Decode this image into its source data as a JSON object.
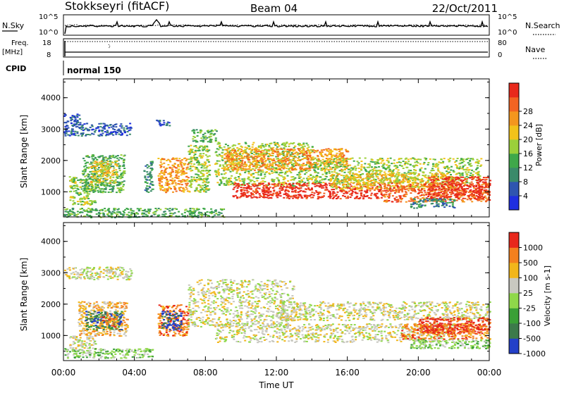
{
  "header": {
    "station": "Stokkseyri (fitACF)",
    "beam": "Beam 04",
    "date": "22/Oct/2011"
  },
  "top_panels": {
    "nsky": {
      "label": "N.Sky",
      "ticks": [
        "10^5",
        "10^0"
      ]
    },
    "nsearch": {
      "label": "N.Search",
      "ticks": [
        "10^5",
        "10^0"
      ]
    },
    "freq": {
      "label_line1": "Freq.",
      "label_line2": "[MHz]",
      "ticks": [
        "18",
        "8"
      ]
    },
    "nave": {
      "label": "Nave",
      "ticks": [
        "80",
        "0"
      ]
    },
    "cpid": {
      "label": "CPID",
      "value": "normal 150"
    }
  },
  "chart_data": [
    {
      "type": "heatmap",
      "name": "power",
      "ylabel": "Slant Range [km]",
      "ylim": [
        200,
        4600
      ],
      "yticks": [
        "1000",
        "2000",
        "3000",
        "4000"
      ],
      "xlim_hours": [
        0,
        24
      ],
      "colorbar": {
        "label": "Power [dB]",
        "ticks": [
          "4",
          "8",
          "12",
          "16",
          "20",
          "24",
          "28"
        ],
        "colors": [
          "#1f2fe0",
          "#2f55b0",
          "#3a8a6a",
          "#3fa84a",
          "#9bd03a",
          "#f2c21a",
          "#f4961e",
          "#f26422",
          "#e8291c"
        ]
      },
      "regions": [
        {
          "h0": 0.0,
          "h1": 3.8,
          "r0": 2800,
          "r1": 3200,
          "level": 1
        },
        {
          "h0": 0.0,
          "h1": 0.9,
          "r0": 3200,
          "r1": 3500,
          "level": 1
        },
        {
          "h0": 0.3,
          "h1": 1.8,
          "r0": 600,
          "r1": 1500,
          "level": 4
        },
        {
          "h0": 1.0,
          "h1": 3.4,
          "r0": 1000,
          "r1": 2200,
          "level": 3
        },
        {
          "h0": 1.5,
          "h1": 3.0,
          "r0": 1300,
          "r1": 2000,
          "level": 5
        },
        {
          "h0": 4.5,
          "h1": 5.0,
          "r0": 1000,
          "r1": 2000,
          "level": 2
        },
        {
          "h0": 5.2,
          "h1": 6.0,
          "r0": 3100,
          "r1": 3300,
          "level": 1
        },
        {
          "h0": 5.3,
          "h1": 7.0,
          "r0": 1000,
          "r1": 2100,
          "level": 6
        },
        {
          "h0": 7.0,
          "h1": 8.2,
          "r0": 1000,
          "r1": 2500,
          "level": 4
        },
        {
          "h0": 7.2,
          "h1": 8.6,
          "r0": 2600,
          "r1": 3000,
          "level": 3
        },
        {
          "h0": 8.5,
          "h1": 14.0,
          "r0": 1200,
          "r1": 2600,
          "level": 4
        },
        {
          "h0": 9.0,
          "h1": 16.0,
          "r0": 1700,
          "r1": 2400,
          "level": 6
        },
        {
          "h0": 9.5,
          "h1": 18.0,
          "r0": 800,
          "r1": 1300,
          "level": 8
        },
        {
          "h0": 14.0,
          "h1": 23.5,
          "r0": 1300,
          "r1": 2100,
          "level": 4
        },
        {
          "h0": 15.0,
          "h1": 22.0,
          "r0": 1100,
          "r1": 1600,
          "level": 5
        },
        {
          "h0": 18.0,
          "h1": 24.0,
          "r0": 700,
          "r1": 1300,
          "level": 7
        },
        {
          "h0": 20.5,
          "h1": 24.0,
          "r0": 800,
          "r1": 1500,
          "level": 8
        },
        {
          "h0": 19.5,
          "h1": 22.0,
          "r0": 500,
          "r1": 800,
          "level": 2
        },
        {
          "h0": 0.0,
          "h1": 9.0,
          "r0": 200,
          "r1": 500,
          "level": 3
        }
      ]
    },
    {
      "type": "heatmap",
      "name": "velocity",
      "ylabel": "Slant Range [km]",
      "ylim": [
        200,
        4600
      ],
      "yticks": [
        "1000",
        "2000",
        "3000",
        "4000"
      ],
      "xlim_hours": [
        0,
        24
      ],
      "xticks": [
        "00:00",
        "04:00",
        "08:00",
        "12:00",
        "16:00",
        "20:00",
        "00:00"
      ],
      "xlabel": "Time UT",
      "colorbar": {
        "label": "Velocity [m s-1]",
        "ticks": [
          "1000",
          "500",
          "100",
          "25",
          "-25",
          "-100",
          "-500",
          "-1000"
        ],
        "colors": [
          "#2440c8",
          "#3c7a4a",
          "#3aa036",
          "#8fd84a",
          "#c8c8c0",
          "#f2b61a",
          "#f4801e",
          "#e8281c"
        ]
      },
      "regions": [
        {
          "h0": 0.0,
          "h1": 3.8,
          "r0": 2800,
          "r1": 3200,
          "level": 4
        },
        {
          "h0": 0.3,
          "h1": 1.8,
          "r0": 600,
          "r1": 1000,
          "level": 4
        },
        {
          "h0": 0.0,
          "h1": 5.0,
          "r0": 300,
          "r1": 600,
          "level": 3
        },
        {
          "h0": 0.8,
          "h1": 3.6,
          "r0": 1000,
          "r1": 2100,
          "level": 5
        },
        {
          "h0": 1.2,
          "h1": 3.3,
          "r0": 1200,
          "r1": 1800,
          "level": 1
        },
        {
          "h0": 2.0,
          "h1": 3.0,
          "r0": 1300,
          "r1": 1700,
          "level": 6
        },
        {
          "h0": 5.3,
          "h1": 7.0,
          "r0": 1000,
          "r1": 2000,
          "level": 6
        },
        {
          "h0": 5.5,
          "h1": 6.6,
          "r0": 1200,
          "r1": 1800,
          "level": 0
        },
        {
          "h0": 7.0,
          "h1": 13.0,
          "r0": 1300,
          "r1": 2800,
          "level": 4
        },
        {
          "h0": 8.5,
          "h1": 22.0,
          "r0": 800,
          "r1": 1400,
          "level": 4
        },
        {
          "h0": 12.0,
          "h1": 24.0,
          "r0": 1500,
          "r1": 2100,
          "level": 4
        },
        {
          "h0": 19.0,
          "h1": 24.0,
          "r0": 900,
          "r1": 1400,
          "level": 6
        },
        {
          "h0": 20.0,
          "h1": 24.0,
          "r0": 1100,
          "r1": 1600,
          "level": 7
        },
        {
          "h0": 19.5,
          "h1": 24.0,
          "r0": 600,
          "r1": 900,
          "level": 3
        }
      ]
    }
  ]
}
